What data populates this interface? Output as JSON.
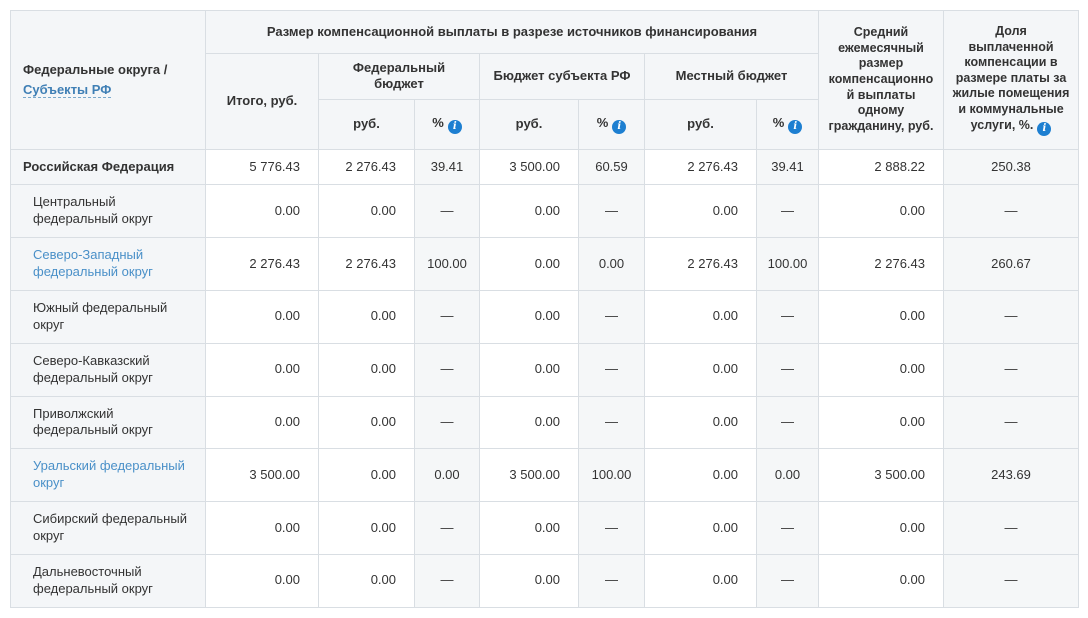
{
  "colors": {
    "header_bg": "#f4f6f8",
    "shaded_column_bg": "#f5f7f8",
    "border": "#d9dee3",
    "text": "#333333",
    "row_link": "#4a90c8",
    "axis_link": "#3f7fb5",
    "info_icon": "#1d7fd1"
  },
  "header": {
    "row_axis_title": "Федеральные округа /",
    "row_axis_link": "Субъекты РФ",
    "group_title": "Размер компенсационной выплаты в разрезе источников финансирования",
    "total_label": "Итого, руб.",
    "federal_budget_label": "Федеральный бюджет",
    "subject_budget_label": "Бюджет субъекта РФ",
    "local_budget_label": "Местный бюджет",
    "rub_label": "руб.",
    "pct_label": "%",
    "avg_monthly_label": "Средний ежемесячный размер компенсационной выплаты одному гражданину, руб.",
    "share_label": "Доля выплаченной компенсации в размере платы за жилые помещения и коммунальные услуги, %.",
    "info_icon_glyph": "i"
  },
  "rows": [
    {
      "name": "Российская Федерация",
      "style": "bold",
      "indent": false,
      "values": [
        "5 776.43",
        "2 276.43",
        "39.41",
        "3 500.00",
        "60.59",
        "2 276.43",
        "39.41",
        "2 888.22",
        "250.38"
      ]
    },
    {
      "name": "Центральный федеральный округ",
      "style": "plain",
      "indent": true,
      "values": [
        "0.00",
        "0.00",
        "—",
        "0.00",
        "—",
        "0.00",
        "—",
        "0.00",
        "—"
      ]
    },
    {
      "name": "Северо-Западный федеральный округ",
      "style": "link",
      "indent": true,
      "values": [
        "2 276.43",
        "2 276.43",
        "100.00",
        "0.00",
        "0.00",
        "2 276.43",
        "100.00",
        "2 276.43",
        "260.67"
      ]
    },
    {
      "name": "Южный федеральный округ",
      "style": "plain",
      "indent": true,
      "values": [
        "0.00",
        "0.00",
        "—",
        "0.00",
        "—",
        "0.00",
        "—",
        "0.00",
        "—"
      ]
    },
    {
      "name": "Северо-Кавказский федеральный округ",
      "style": "plain",
      "indent": true,
      "values": [
        "0.00",
        "0.00",
        "—",
        "0.00",
        "—",
        "0.00",
        "—",
        "0.00",
        "—"
      ]
    },
    {
      "name": "Приволжский федеральный округ",
      "style": "plain",
      "indent": true,
      "values": [
        "0.00",
        "0.00",
        "—",
        "0.00",
        "—",
        "0.00",
        "—",
        "0.00",
        "—"
      ]
    },
    {
      "name": "Уральский федеральный округ",
      "style": "link",
      "indent": true,
      "values": [
        "3 500.00",
        "0.00",
        "0.00",
        "3 500.00",
        "100.00",
        "0.00",
        "0.00",
        "3 500.00",
        "243.69"
      ]
    },
    {
      "name": "Сибирский федеральный округ",
      "style": "plain",
      "indent": true,
      "values": [
        "0.00",
        "0.00",
        "—",
        "0.00",
        "—",
        "0.00",
        "—",
        "0.00",
        "—"
      ]
    },
    {
      "name": "Дальневосточный федеральный округ",
      "style": "plain",
      "indent": true,
      "values": [
        "0.00",
        "0.00",
        "—",
        "0.00",
        "—",
        "0.00",
        "—",
        "0.00",
        "—"
      ]
    }
  ]
}
